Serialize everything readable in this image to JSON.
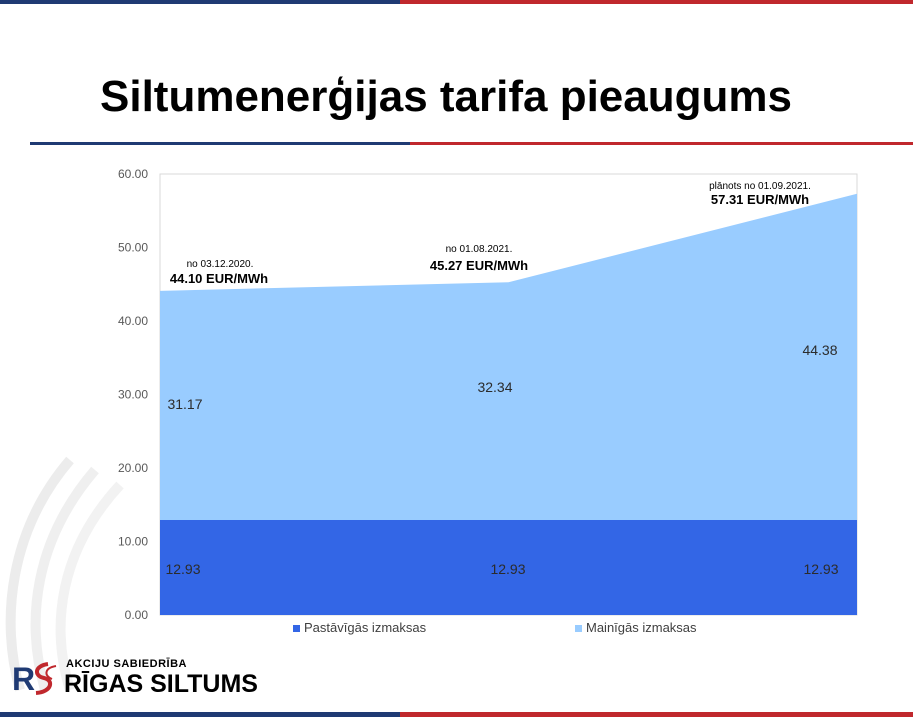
{
  "title": "Siltumenerģijas tarifa pieaugums",
  "colors": {
    "fixed": "#3366e6",
    "variable": "#99ccff",
    "brand_blue": "#1f3a73",
    "brand_red": "#c0282d"
  },
  "chart_data": {
    "type": "area",
    "stacked": true,
    "categories": [
      "",
      "",
      ""
    ],
    "series": [
      {
        "name": "Pastāvīgās izmaksas",
        "values": [
          12.93,
          12.93,
          12.93
        ],
        "labels": [
          "12.93",
          "12.93",
          "12.93"
        ]
      },
      {
        "name": "Mainīgās izmaksas",
        "values": [
          31.17,
          32.34,
          44.38
        ],
        "labels": [
          "31.17",
          "32.34",
          "44.38"
        ]
      }
    ],
    "y_ticks": [
      "0.00",
      "10.00",
      "20.00",
      "30.00",
      "40.00",
      "50.00",
      "60.00"
    ],
    "ylim": [
      0,
      60
    ],
    "grid": false,
    "legend_position": "bottom",
    "annotations": [
      {
        "small": "no 03.12.2020.",
        "big": "44.10 EUR/MWh"
      },
      {
        "small": "no 01.08.2021.",
        "big": "45.27 EUR/MWh"
      },
      {
        "small": "plānots no 01.09.2021.",
        "big": "57.31 EUR/MWh"
      }
    ]
  },
  "logo": {
    "top_text": "AKCIJU SABIEDRĪBA",
    "name": "RĪGAS SILTUMS"
  }
}
